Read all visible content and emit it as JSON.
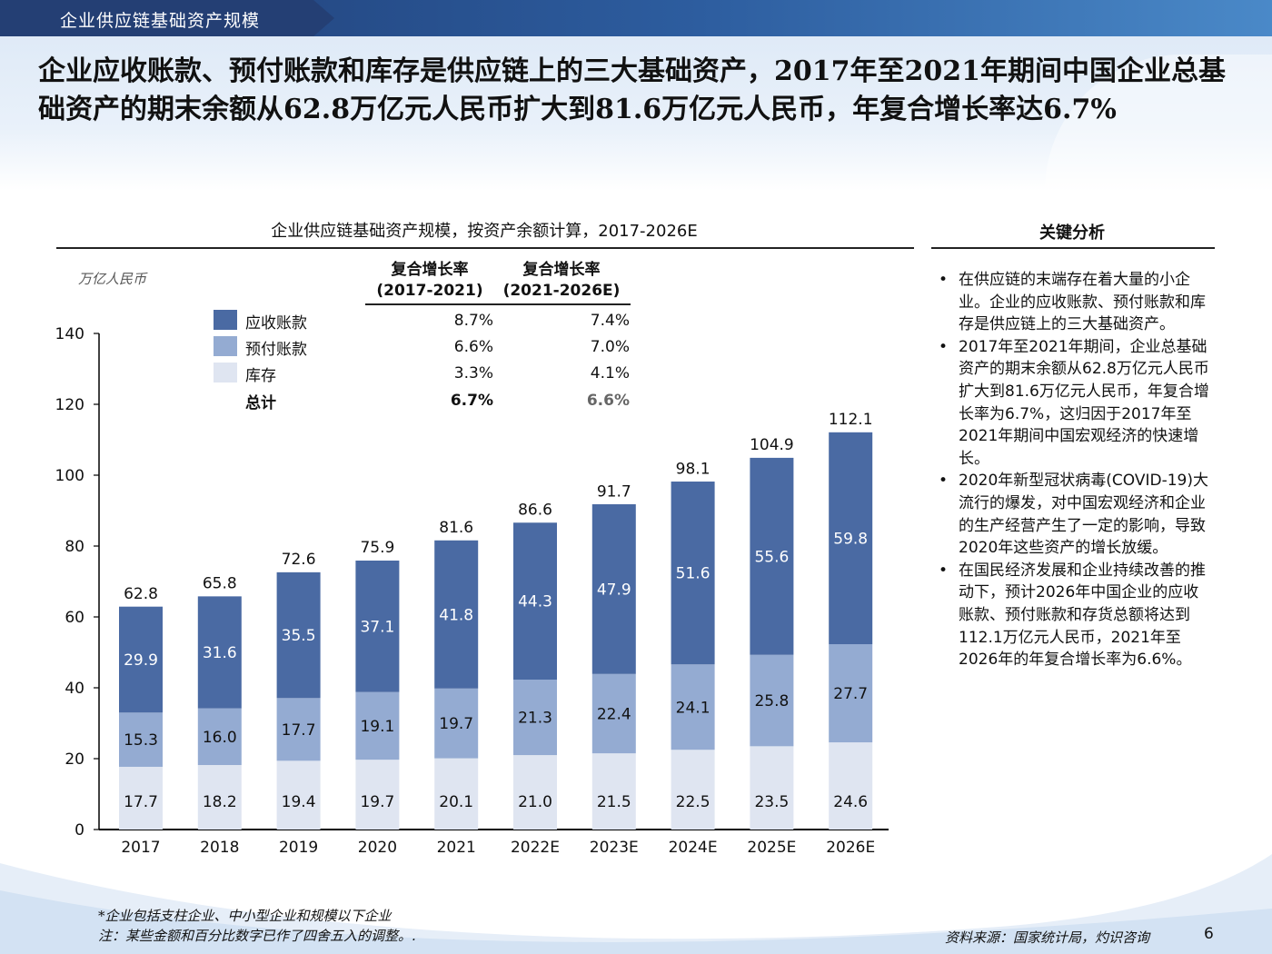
{
  "header": {
    "section_label": "企业供应链基础资产规模"
  },
  "headline": "企业应收账款、预付账款和库存是供应链上的三大基础资产，2017年至2021年期间中国企业总基础资产的期末余额从62.8万亿元人民币扩大到81.6万亿元人民币，年复合增长率达6.7%",
  "chart_title": "企业供应链基础资产规模，按资产余额计算，2017-2026E",
  "unit_label": "万亿人民币",
  "cagr": {
    "header_1": "复合增长率 (2017-2021)",
    "header_2": "复合增长率 (2021-2026E)",
    "rows": [
      {
        "label": "应收账款",
        "v1": "8.7%",
        "v2": "7.4%",
        "color": "#4a6aa3"
      },
      {
        "label": "预付账款",
        "v1": "6.6%",
        "v2": "7.0%",
        "color": "#94abd2"
      },
      {
        "label": "库存",
        "v1": "3.3%",
        "v2": "4.1%",
        "color": "#dfe5f1"
      },
      {
        "label": "总计",
        "v1": "6.7%",
        "v2": "6.6%",
        "color": ""
      }
    ]
  },
  "chart_data": {
    "type": "bar",
    "stacked": true,
    "title": "企业供应链基础资产规模，按资产余额计算，2017-2026E",
    "ylabel": "万亿人民币",
    "ylim": [
      0,
      140
    ],
    "yticks": [
      0,
      20,
      40,
      60,
      80,
      100,
      120,
      140
    ],
    "categories": [
      "2017",
      "2018",
      "2019",
      "2020",
      "2021",
      "2022E",
      "2023E",
      "2024E",
      "2025E",
      "2026E"
    ],
    "series": [
      {
        "name": "库存",
        "color": "#dfe5f1",
        "values": [
          17.7,
          18.2,
          19.4,
          19.7,
          20.1,
          21.0,
          21.5,
          22.5,
          23.5,
          24.6
        ]
      },
      {
        "name": "预付账款",
        "color": "#94abd2",
        "values": [
          15.3,
          16.0,
          17.7,
          19.1,
          19.7,
          21.3,
          22.4,
          24.1,
          25.8,
          27.7
        ]
      },
      {
        "name": "应收账款",
        "color": "#4a6aa3",
        "values": [
          29.9,
          31.6,
          35.5,
          37.1,
          41.8,
          44.3,
          47.9,
          51.6,
          55.6,
          59.8
        ]
      }
    ],
    "totals": [
      62.8,
      65.8,
      72.6,
      75.9,
      81.6,
      86.6,
      91.7,
      98.1,
      104.9,
      112.1
    ]
  },
  "sidebar": {
    "title": "关键分析",
    "bullets": [
      "在供应链的末端存在着大量的小企业。企业的应收账款、预付账款和库存是供应链上的三大基础资产。",
      "2017年至2021年期间，企业总基础资产的期末余额从62.8万亿元人民币扩大到81.6万亿元人民币，年复合增长率为6.7%，这归因于2017年至2021年期间中国宏观经济的快速增长。",
      "2020年新型冠状病毒(COVID-19)大流行的爆发，对中国宏观经济和企业的生产经营产生了一定的影响，导致2020年这些资产的增长放缓。",
      "在国民经济发展和企业持续改善的推动下，预计2026年中国企业的应收账款、预付账款和存货总额将达到112.1万亿元人民币，2021年至2026年的年复合增长率为6.6%。"
    ]
  },
  "footnotes": {
    "note1": "*企业包括支柱企业、中小型企业和规模以下企业",
    "note2": "注：某些金额和百分比数字已作了四舍五入的调整。."
  },
  "source": "资料来源：国家统计局，灼识咨询",
  "page_number": "6"
}
